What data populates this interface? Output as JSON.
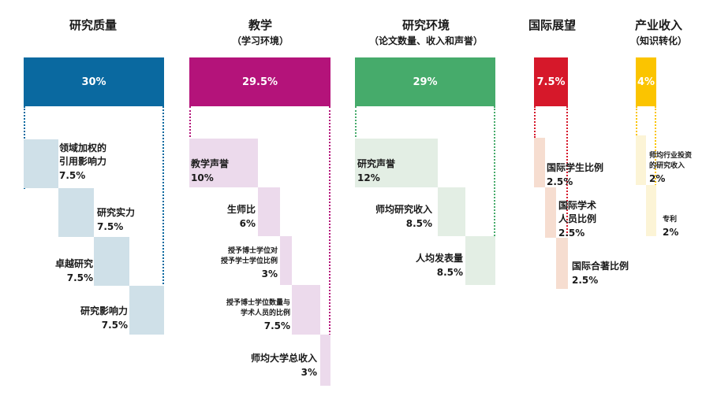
{
  "pillars": [
    {
      "title": "研究质量",
      "subtitle": "",
      "weight": "30%",
      "color": "#0a69a0",
      "light": "#cfe0e8",
      "metrics": [
        {
          "name": "领域加权的\n引用影响力",
          "weight": "7.5%"
        },
        {
          "name": "研究实力",
          "weight": "7.5%"
        },
        {
          "name": "卓越研究",
          "weight": "7.5%"
        },
        {
          "name": "研究影响力",
          "weight": "7.5%"
        }
      ]
    },
    {
      "title": "教学",
      "subtitle": "（学习环境）",
      "weight": "29.5%",
      "color": "#b4137a",
      "light": "#ecdaec",
      "metrics": [
        {
          "name": "教学声誉",
          "weight": "10%"
        },
        {
          "name": "生师比",
          "weight": "6%"
        },
        {
          "name": "授予博士学位对\n授予学士学位比例",
          "weight": "3%"
        },
        {
          "name": "授予博士学位数量与\n学术人员的比例",
          "weight": "7.5%"
        },
        {
          "name": "师均大学总收入",
          "weight": "3%"
        }
      ]
    },
    {
      "title": "研究环境",
      "subtitle": "（论文数量、收入和声誉）",
      "weight": "29%",
      "color": "#46ab6b",
      "light": "#e3eee4",
      "metrics": [
        {
          "name": "研究声誉",
          "weight": "12%"
        },
        {
          "name": "师均研究收入",
          "weight": "8.5%"
        },
        {
          "name": "人均发表量",
          "weight": "8.5%"
        }
      ]
    },
    {
      "title": "国际展望",
      "subtitle": "",
      "weight": "7.5%",
      "color": "#d6182a",
      "light": "#f6ddd0",
      "metrics": [
        {
          "name": "国际学生比例",
          "weight": "2.5%"
        },
        {
          "name": "国际学术\n人员比例",
          "weight": "2.5%"
        },
        {
          "name": "国际合著比例",
          "weight": "2.5%"
        }
      ]
    },
    {
      "title": "产业收入",
      "subtitle": "（知识转化）",
      "weight": "4%",
      "color": "#fbc400",
      "light": "#fcf4d6",
      "metrics": [
        {
          "name": "师均行业投资\n的研究收入",
          "weight": "2%"
        },
        {
          "name": "专利",
          "weight": "2%"
        }
      ]
    }
  ]
}
